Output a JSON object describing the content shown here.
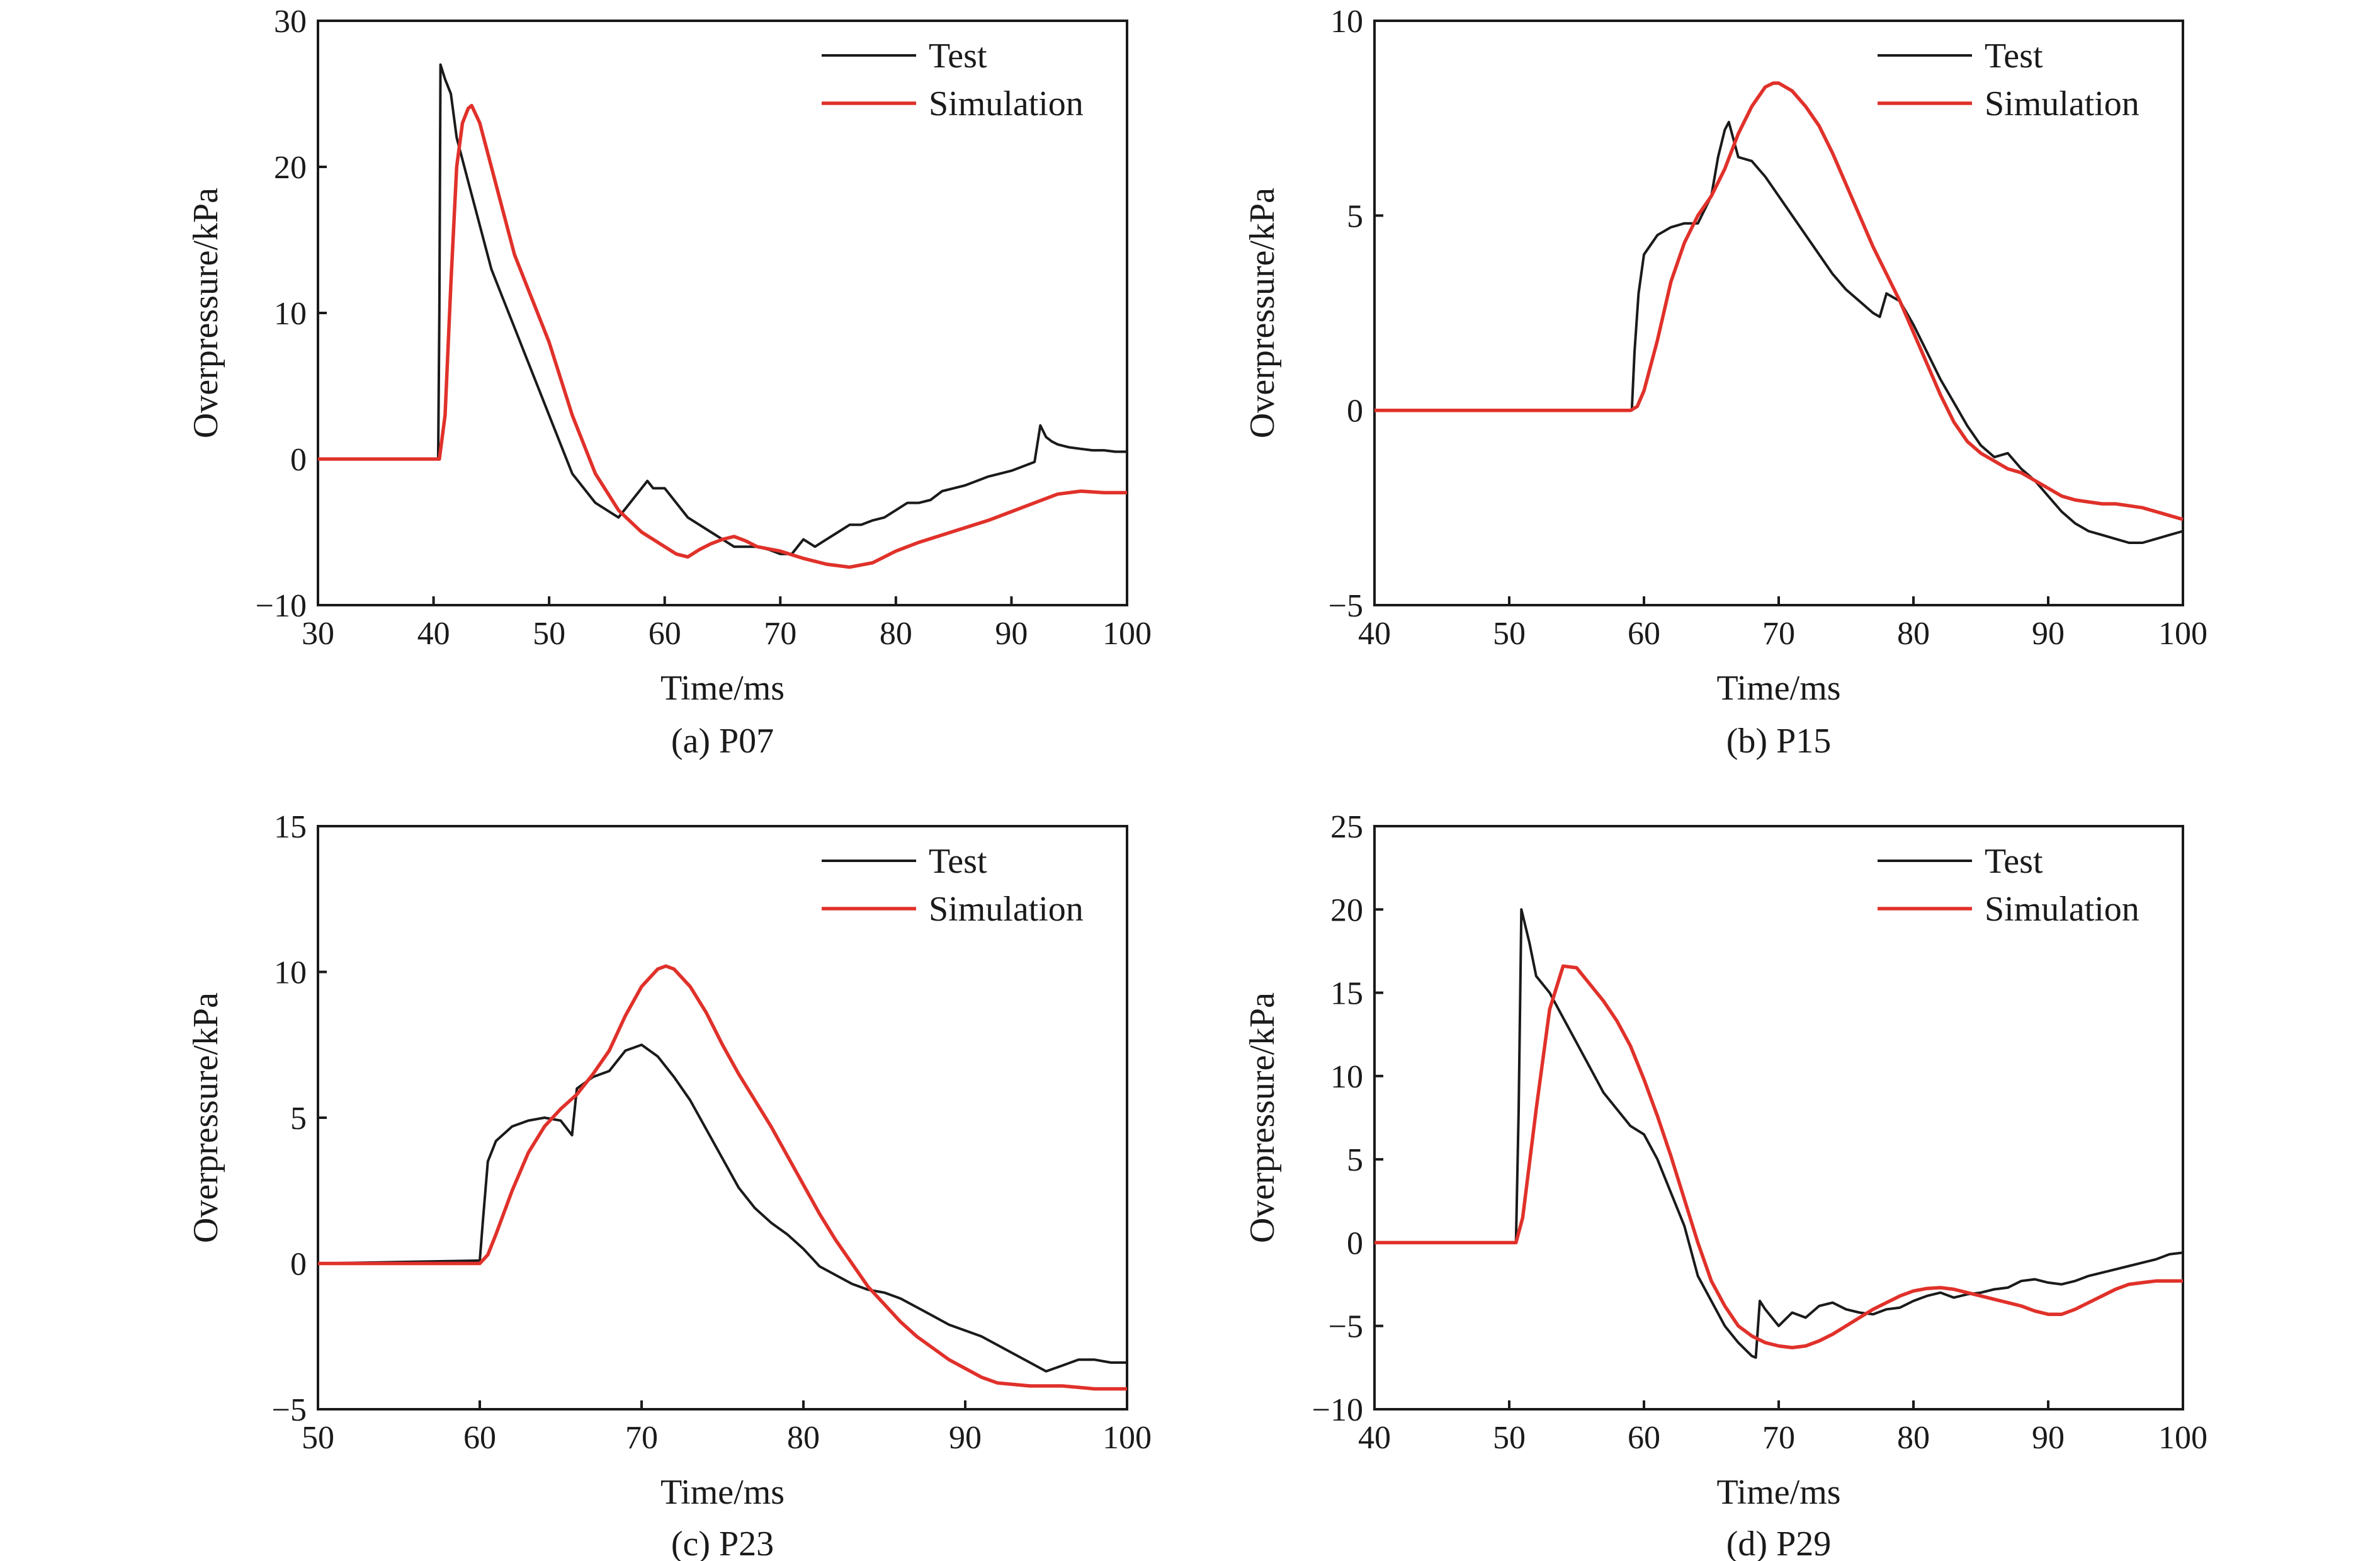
{
  "colors": {
    "test": "#1a1a1a",
    "simulation": "#e0312a",
    "axis": "#1a1a1a"
  },
  "chart_data": [
    {
      "type": "line",
      "caption": "(a) P07",
      "xlabel": "Time/ms",
      "ylabel": "Overpressure/kPa",
      "xlim": [
        30,
        100
      ],
      "ylim": [
        -10,
        30
      ],
      "xticks": [
        30,
        40,
        50,
        60,
        70,
        80,
        90,
        100
      ],
      "xtick_labels": [
        "30",
        "40",
        "50",
        "60",
        "70",
        "80",
        "90",
        "100"
      ],
      "yticks": [
        -10,
        0,
        10,
        20,
        30
      ],
      "ytick_labels": [
        "−10",
        "0",
        "10",
        "20",
        "30"
      ],
      "legend": "top-right",
      "series": [
        {
          "name": "Test",
          "color": "#1a1a1a",
          "x": [
            30,
            40.4,
            40.5,
            40.6,
            41,
            41.5,
            42,
            43,
            44,
            45,
            46,
            47,
            48,
            49,
            50,
            51,
            52,
            53,
            54,
            55,
            56,
            57,
            58,
            58.5,
            59,
            60,
            61,
            62,
            63,
            64,
            65,
            66,
            67,
            68,
            69,
            70,
            71,
            72,
            73,
            74,
            75,
            76,
            77,
            78,
            79,
            80,
            81,
            82,
            83,
            84,
            85,
            86,
            87,
            88,
            89,
            90,
            91,
            92,
            92.5,
            93,
            93.5,
            94,
            95,
            96,
            97,
            98,
            99,
            100
          ],
          "y": [
            0,
            0,
            10,
            27,
            26,
            25,
            22,
            19,
            16,
            13,
            11,
            9,
            7,
            5,
            3,
            1,
            -1,
            -2,
            -3,
            -3.5,
            -4,
            -3,
            -2,
            -1.5,
            -2,
            -2,
            -3,
            -4,
            -4.5,
            -5,
            -5.5,
            -6,
            -6,
            -6,
            -6.2,
            -6.5,
            -6.5,
            -5.5,
            -6,
            -5.5,
            -5,
            -4.5,
            -4.5,
            -4.2,
            -4,
            -3.5,
            -3,
            -3,
            -2.8,
            -2.2,
            -2,
            -1.8,
            -1.5,
            -1.2,
            -1,
            -0.8,
            -0.5,
            -0.2,
            2.3,
            1.5,
            1.2,
            1,
            0.8,
            0.7,
            0.6,
            0.6,
            0.5,
            0.5
          ]
        },
        {
          "name": "Simulation",
          "color": "#e0312a",
          "x": [
            30,
            40.5,
            41,
            41.5,
            42,
            42.5,
            43,
            43.3,
            44,
            45,
            46,
            47,
            48,
            49,
            50,
            52,
            54,
            56,
            58,
            60,
            61,
            62,
            63,
            64,
            65,
            66,
            67,
            68,
            70,
            72,
            74,
            76,
            78,
            80,
            82,
            84,
            86,
            88,
            90,
            92,
            94,
            96,
            98,
            100
          ],
          "y": [
            0,
            0,
            3,
            12,
            20,
            23,
            24,
            24.2,
            23,
            20,
            17,
            14,
            12,
            10,
            8,
            3,
            -1,
            -3.5,
            -5,
            -6,
            -6.5,
            -6.7,
            -6.2,
            -5.8,
            -5.5,
            -5.3,
            -5.6,
            -6,
            -6.3,
            -6.8,
            -7.2,
            -7.4,
            -7.1,
            -6.3,
            -5.7,
            -5.2,
            -4.7,
            -4.2,
            -3.6,
            -3,
            -2.4,
            -2.2,
            -2.3,
            -2.3
          ]
        }
      ]
    },
    {
      "type": "line",
      "caption": "(b) P15",
      "xlabel": "Time/ms",
      "ylabel": "Overpressure/kPa",
      "xlim": [
        40,
        100
      ],
      "ylim": [
        -5,
        10
      ],
      "xticks": [
        40,
        50,
        60,
        70,
        80,
        90,
        100
      ],
      "xtick_labels": [
        "40",
        "50",
        "60",
        "70",
        "80",
        "90",
        "100"
      ],
      "yticks": [
        -5,
        0,
        5,
        10
      ],
      "ytick_labels": [
        "−5",
        "0",
        "5",
        "10"
      ],
      "legend": "top-right",
      "series": [
        {
          "name": "Test",
          "color": "#1a1a1a",
          "x": [
            40,
            59.1,
            59.3,
            59.6,
            60,
            61,
            62,
            63,
            64,
            65,
            65.5,
            66,
            66.3,
            67,
            68,
            69,
            70,
            71,
            72,
            73,
            74,
            75,
            76,
            77,
            77.5,
            78,
            79,
            80,
            81,
            82,
            83,
            84,
            85,
            86,
            87,
            88,
            89,
            90,
            91,
            92,
            93,
            94,
            95,
            96,
            97,
            98,
            99,
            100
          ],
          "y": [
            0,
            0,
            1.5,
            3,
            4,
            4.5,
            4.7,
            4.8,
            4.8,
            5.5,
            6.5,
            7.2,
            7.4,
            6.5,
            6.4,
            6,
            5.5,
            5,
            4.5,
            4,
            3.5,
            3.1,
            2.8,
            2.5,
            2.4,
            3,
            2.8,
            2.2,
            1.5,
            0.8,
            0.2,
            -0.4,
            -0.9,
            -1.2,
            -1.1,
            -1.5,
            -1.8,
            -2.2,
            -2.6,
            -2.9,
            -3.1,
            -3.2,
            -3.3,
            -3.4,
            -3.4,
            -3.3,
            -3.2,
            -3.1
          ]
        },
        {
          "name": "Simulation",
          "color": "#e0312a",
          "x": [
            40,
            59,
            59.5,
            60,
            61,
            62,
            63,
            64,
            65,
            66,
            67,
            68,
            69,
            69.6,
            70,
            71,
            72,
            73,
            74,
            75,
            76,
            77,
            78,
            79,
            80,
            81,
            82,
            83,
            84,
            85,
            86,
            87,
            88,
            89,
            90,
            91,
            92,
            93,
            94,
            95,
            96,
            97,
            98,
            99,
            100
          ],
          "y": [
            0,
            0,
            0.1,
            0.5,
            1.8,
            3.3,
            4.3,
            5,
            5.5,
            6.2,
            7.1,
            7.8,
            8.3,
            8.4,
            8.4,
            8.2,
            7.8,
            7.3,
            6.6,
            5.8,
            5,
            4.2,
            3.5,
            2.8,
            2,
            1.2,
            0.4,
            -0.3,
            -0.8,
            -1.1,
            -1.3,
            -1.5,
            -1.6,
            -1.8,
            -2,
            -2.2,
            -2.3,
            -2.35,
            -2.4,
            -2.4,
            -2.45,
            -2.5,
            -2.6,
            -2.7,
            -2.8
          ]
        }
      ]
    },
    {
      "type": "line",
      "caption": "(c) P23",
      "xlabel": "Time/ms",
      "ylabel": "Overpressure/kPa",
      "xlim": [
        50,
        100
      ],
      "ylim": [
        -5,
        15
      ],
      "xticks": [
        50,
        60,
        70,
        80,
        90,
        100
      ],
      "xtick_labels": [
        "50",
        "60",
        "70",
        "80",
        "90",
        "100"
      ],
      "yticks": [
        -5,
        0,
        5,
        10,
        15
      ],
      "ytick_labels": [
        "−5",
        "0",
        "5",
        "10",
        "15"
      ],
      "legend": "top-right",
      "series": [
        {
          "name": "Test",
          "color": "#1a1a1a",
          "x": [
            50,
            60,
            60.2,
            60.5,
            61,
            62,
            63,
            64,
            65,
            65.7,
            66,
            67,
            68,
            69,
            70,
            71,
            72,
            73,
            74,
            75,
            76,
            77,
            78,
            79,
            80,
            81,
            82,
            83,
            84,
            85,
            86,
            87,
            88,
            89,
            90,
            91,
            92,
            93,
            94,
            95,
            96,
            97,
            98,
            99,
            100
          ],
          "y": [
            0,
            0.1,
            1.5,
            3.5,
            4.2,
            4.7,
            4.9,
            5,
            4.9,
            4.4,
            6,
            6.4,
            6.6,
            7.3,
            7.5,
            7.1,
            6.4,
            5.6,
            4.6,
            3.6,
            2.6,
            1.9,
            1.4,
            1,
            0.5,
            -0.1,
            -0.4,
            -0.7,
            -0.9,
            -1,
            -1.2,
            -1.5,
            -1.8,
            -2.1,
            -2.3,
            -2.5,
            -2.8,
            -3.1,
            -3.4,
            -3.7,
            -3.5,
            -3.3,
            -3.3,
            -3.4,
            -3.4
          ]
        },
        {
          "name": "Simulation",
          "color": "#e0312a",
          "x": [
            50,
            60,
            60.5,
            61,
            62,
            63,
            64,
            65,
            66,
            67,
            68,
            69,
            70,
            71,
            71.5,
            72,
            73,
            74,
            75,
            76,
            77,
            78,
            79,
            80,
            81,
            82,
            83,
            84,
            85,
            86,
            87,
            88,
            89,
            90,
            91,
            92,
            93,
            94,
            95,
            96,
            97,
            98,
            99,
            100
          ],
          "y": [
            0,
            0,
            0.3,
            1,
            2.5,
            3.8,
            4.7,
            5.3,
            5.8,
            6.5,
            7.3,
            8.5,
            9.5,
            10.1,
            10.2,
            10.1,
            9.5,
            8.6,
            7.5,
            6.5,
            5.6,
            4.7,
            3.7,
            2.7,
            1.7,
            0.8,
            0,
            -0.8,
            -1.4,
            -2,
            -2.5,
            -2.9,
            -3.3,
            -3.6,
            -3.9,
            -4.1,
            -4.15,
            -4.2,
            -4.2,
            -4.2,
            -4.25,
            -4.3,
            -4.3,
            -4.3
          ]
        }
      ]
    },
    {
      "type": "line",
      "caption": "(d) P29",
      "xlabel": "Time/ms",
      "ylabel": "Overpressure/kPa",
      "xlim": [
        40,
        100
      ],
      "ylim": [
        -10,
        25
      ],
      "xticks": [
        40,
        50,
        60,
        70,
        80,
        90,
        100
      ],
      "xtick_labels": [
        "40",
        "50",
        "60",
        "70",
        "80",
        "90",
        "100"
      ],
      "yticks": [
        -10,
        -5,
        0,
        5,
        10,
        15,
        20,
        25
      ],
      "ytick_labels": [
        "−10",
        "−5",
        "0",
        "5",
        "10",
        "15",
        "20",
        "25"
      ],
      "legend": "top-right",
      "series": [
        {
          "name": "Test",
          "color": "#1a1a1a",
          "x": [
            40,
            50.5,
            50.7,
            50.9,
            51.5,
            52,
            53,
            54,
            55,
            56,
            57,
            58,
            59,
            60,
            61,
            62,
            63,
            64,
            65,
            66,
            67,
            68,
            68.3,
            68.6,
            69,
            70,
            71,
            72,
            73,
            74,
            75,
            76,
            77,
            78,
            79,
            80,
            81,
            82,
            83,
            84,
            85,
            86,
            87,
            88,
            89,
            90,
            91,
            92,
            93,
            94,
            95,
            96,
            97,
            98,
            99,
            100
          ],
          "y": [
            0,
            0,
            8,
            20,
            18,
            16,
            15,
            13.5,
            12,
            10.5,
            9,
            8,
            7,
            6.5,
            5,
            3,
            1,
            -2,
            -3.5,
            -5,
            -6,
            -6.8,
            -6.9,
            -3.5,
            -4,
            -5,
            -4.2,
            -4.5,
            -3.8,
            -3.6,
            -4,
            -4.2,
            -4.3,
            -4,
            -3.9,
            -3.5,
            -3.2,
            -3,
            -3.3,
            -3.1,
            -3,
            -2.8,
            -2.7,
            -2.3,
            -2.2,
            -2.4,
            -2.5,
            -2.3,
            -2,
            -1.8,
            -1.6,
            -1.4,
            -1.2,
            -1,
            -0.7,
            -0.6
          ]
        },
        {
          "name": "Simulation",
          "color": "#e0312a",
          "x": [
            40,
            50.5,
            51,
            52,
            53,
            54,
            55,
            56,
            57,
            58,
            59,
            60,
            61,
            62,
            63,
            64,
            65,
            66,
            67,
            68,
            69,
            70,
            71,
            72,
            73,
            74,
            75,
            76,
            77,
            78,
            79,
            80,
            81,
            82,
            83,
            84,
            85,
            86,
            87,
            88,
            89,
            90,
            91,
            92,
            93,
            94,
            95,
            96,
            97,
            98,
            99,
            100
          ],
          "y": [
            0,
            0,
            1.5,
            8,
            14,
            16.6,
            16.5,
            15.5,
            14.5,
            13.3,
            11.8,
            9.8,
            7.6,
            5.2,
            2.6,
            0,
            -2.3,
            -3.8,
            -5,
            -5.6,
            -6,
            -6.2,
            -6.3,
            -6.2,
            -5.9,
            -5.5,
            -5,
            -4.5,
            -4,
            -3.6,
            -3.2,
            -2.9,
            -2.75,
            -2.7,
            -2.8,
            -3,
            -3.2,
            -3.4,
            -3.6,
            -3.8,
            -4.1,
            -4.3,
            -4.3,
            -4,
            -3.6,
            -3.2,
            -2.8,
            -2.5,
            -2.4,
            -2.3,
            -2.3,
            -2.3
          ]
        }
      ]
    }
  ]
}
